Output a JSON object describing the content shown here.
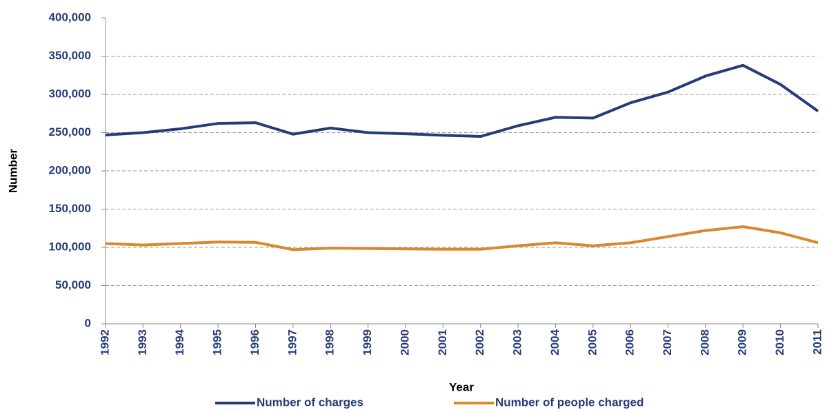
{
  "chart_data": {
    "type": "line",
    "x_label": "Year",
    "y_label": "Number",
    "categories": [
      "1992",
      "1993",
      "1994",
      "1995",
      "1996",
      "1997",
      "1998",
      "1999",
      "2000",
      "2001",
      "2002",
      "2003",
      "2004",
      "2005",
      "2006",
      "2007",
      "2008",
      "2009",
      "2010",
      "2011"
    ],
    "series": [
      {
        "name": "Number of charges",
        "color": "#253c78",
        "values": [
          247000,
          250000,
          255000,
          262000,
          263000,
          248000,
          256000,
          250000,
          248500,
          246500,
          245000,
          259000,
          270000,
          269000,
          289000,
          303000,
          324000,
          338000,
          313000,
          278000
        ]
      },
      {
        "name": "Number of people charged",
        "color": "#d9882a",
        "values": [
          105000,
          103000,
          105000,
          107000,
          106500,
          97000,
          99000,
          98500,
          98000,
          97500,
          97500,
          102000,
          106000,
          102000,
          106000,
          114000,
          122000,
          127000,
          119000,
          106000
        ]
      }
    ],
    "ylim": [
      0,
      400000
    ],
    "yticks": [
      0,
      {
        "value": 50000,
        "label": "50,000"
      },
      {
        "value": 100000,
        "label": "100,000"
      },
      {
        "value": 150000,
        "label": "150,000"
      },
      {
        "value": 200000,
        "label": "200,000"
      },
      {
        "value": 250000,
        "label": "250,000"
      },
      {
        "value": 300000,
        "label": "300,000"
      },
      {
        "value": 350000,
        "label": "350,000"
      },
      {
        "value": 400000,
        "label": "400,000"
      }
    ],
    "grid": true,
    "legend": "bottom"
  }
}
